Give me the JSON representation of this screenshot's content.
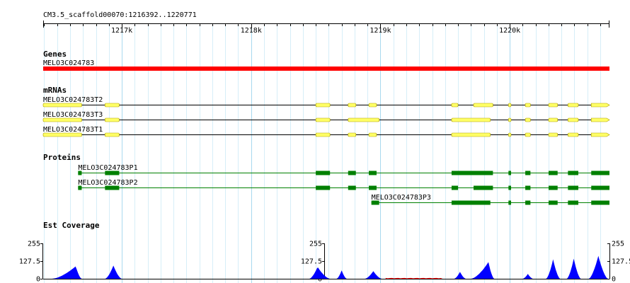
{
  "view": {
    "coordinate_label": "CM3.5_scaffold00070:1216392..1220771",
    "start": 1216392,
    "end": 1220771,
    "ruler_labels": [
      {
        "pos": 1217000,
        "text": "1217k"
      },
      {
        "pos": 1218000,
        "text": "1218k"
      },
      {
        "pos": 1219000,
        "text": "1219k"
      },
      {
        "pos": 1220000,
        "text": "1220k"
      }
    ],
    "minor_tick_step": 100
  },
  "colors": {
    "gene": "#ff0000",
    "mrna": "#ffff66",
    "mrna_outline": "#b0a000",
    "protein": "#008000",
    "est": "#0000ff",
    "est_low": "#ff0000",
    "grid_major": "#a8d8ee",
    "grid_minor": "#d6eef8"
  },
  "tracks": {
    "genes": {
      "title": "Genes",
      "features": [
        {
          "name": "MELO3C024783",
          "start": 1216392,
          "end": 1220771
        }
      ]
    },
    "mrnas": {
      "title": "mRNAs",
      "features": [
        {
          "name": "MELO3C024783T2",
          "start": 1216392,
          "end": 1220771,
          "exons": [
            [
              1216392,
              1216690
            ],
            [
              1216870,
              1216980
            ],
            [
              1218500,
              1218610
            ],
            [
              1218750,
              1218810
            ],
            [
              1218910,
              1218970
            ],
            [
              1219550,
              1219600
            ],
            [
              1219720,
              1219870
            ],
            [
              1219990,
              1220010
            ],
            [
              1220120,
              1220160
            ],
            [
              1220300,
              1220370
            ],
            [
              1220450,
              1220530
            ],
            [
              1220630,
              1220771
            ]
          ]
        },
        {
          "name": "MELO3C024783T3",
          "start": 1216392,
          "end": 1220771,
          "exons": [
            [
              1216392,
              1216690
            ],
            [
              1216870,
              1216980
            ],
            [
              1218500,
              1218610
            ],
            [
              1218750,
              1218990
            ],
            [
              1219550,
              1219850
            ],
            [
              1219990,
              1220010
            ],
            [
              1220120,
              1220160
            ],
            [
              1220300,
              1220370
            ],
            [
              1220450,
              1220530
            ],
            [
              1220630,
              1220771
            ]
          ]
        },
        {
          "name": "MELO3C024783T1",
          "start": 1216392,
          "end": 1220771,
          "exons": [
            [
              1216392,
              1216690
            ],
            [
              1216870,
              1216980
            ],
            [
              1218500,
              1218610
            ],
            [
              1218750,
              1218810
            ],
            [
              1218910,
              1218970
            ],
            [
              1219550,
              1219850
            ],
            [
              1219990,
              1220010
            ],
            [
              1220120,
              1220160
            ],
            [
              1220300,
              1220370
            ],
            [
              1220450,
              1220530
            ],
            [
              1220630,
              1220771
            ]
          ]
        }
      ]
    },
    "proteins": {
      "title": "Proteins",
      "features": [
        {
          "name": "MELO3C024783P1",
          "start": 1216662,
          "end": 1220771,
          "exons": [
            [
              1216662,
              1216690
            ],
            [
              1216870,
              1216980
            ],
            [
              1218500,
              1218610
            ],
            [
              1218750,
              1218810
            ],
            [
              1218910,
              1218970
            ],
            [
              1219550,
              1219870
            ],
            [
              1219990,
              1220010
            ],
            [
              1220120,
              1220160
            ],
            [
              1220300,
              1220370
            ],
            [
              1220450,
              1220530
            ],
            [
              1220630,
              1220771
            ]
          ]
        },
        {
          "name": "MELO3C024783P2",
          "start": 1216662,
          "end": 1220771,
          "exons": [
            [
              1216662,
              1216690
            ],
            [
              1216870,
              1216980
            ],
            [
              1218500,
              1218610
            ],
            [
              1218750,
              1218810
            ],
            [
              1218910,
              1218970
            ],
            [
              1219550,
              1219600
            ],
            [
              1219720,
              1219870
            ],
            [
              1219990,
              1220010
            ],
            [
              1220120,
              1220160
            ],
            [
              1220300,
              1220370
            ],
            [
              1220450,
              1220530
            ],
            [
              1220630,
              1220771
            ]
          ]
        },
        {
          "name": "MELO3C024783P3",
          "start": 1218930,
          "end": 1220771,
          "exons": [
            [
              1218930,
              1218990
            ],
            [
              1219550,
              1219850
            ],
            [
              1219990,
              1220010
            ],
            [
              1220120,
              1220160
            ],
            [
              1220300,
              1220370
            ],
            [
              1220450,
              1220530
            ],
            [
              1220630,
              1220771
            ]
          ]
        }
      ]
    },
    "est_coverage": {
      "title": "Est Coverage",
      "scale_labels": [
        "255",
        "127.5",
        "0"
      ],
      "max": 255,
      "peaks": [
        {
          "start": 1216460,
          "end": 1216690,
          "max": 90,
          "skew": 0.8
        },
        {
          "start": 1216870,
          "end": 1217000,
          "max": 95,
          "skew": 0.5
        },
        {
          "start": 1218450,
          "end": 1218610,
          "max": 85,
          "skew": 0.4
        },
        {
          "start": 1218660,
          "end": 1218740,
          "max": 60,
          "skew": 0.5
        },
        {
          "start": 1218880,
          "end": 1219010,
          "max": 55,
          "skew": 0.5
        },
        {
          "start": 1219570,
          "end": 1219660,
          "max": 50,
          "skew": 0.5
        },
        {
          "start": 1219700,
          "end": 1219880,
          "max": 120,
          "skew": 0.75
        },
        {
          "start": 1220100,
          "end": 1220180,
          "max": 35,
          "skew": 0.5
        },
        {
          "start": 1220280,
          "end": 1220390,
          "max": 140,
          "skew": 0.5
        },
        {
          "start": 1220440,
          "end": 1220550,
          "max": 145,
          "skew": 0.5
        },
        {
          "start": 1220610,
          "end": 1220760,
          "max": 165,
          "skew": 0.5
        }
      ],
      "low_regions": [
        {
          "start": 1219040,
          "end": 1219480,
          "max": 6
        }
      ]
    }
  }
}
